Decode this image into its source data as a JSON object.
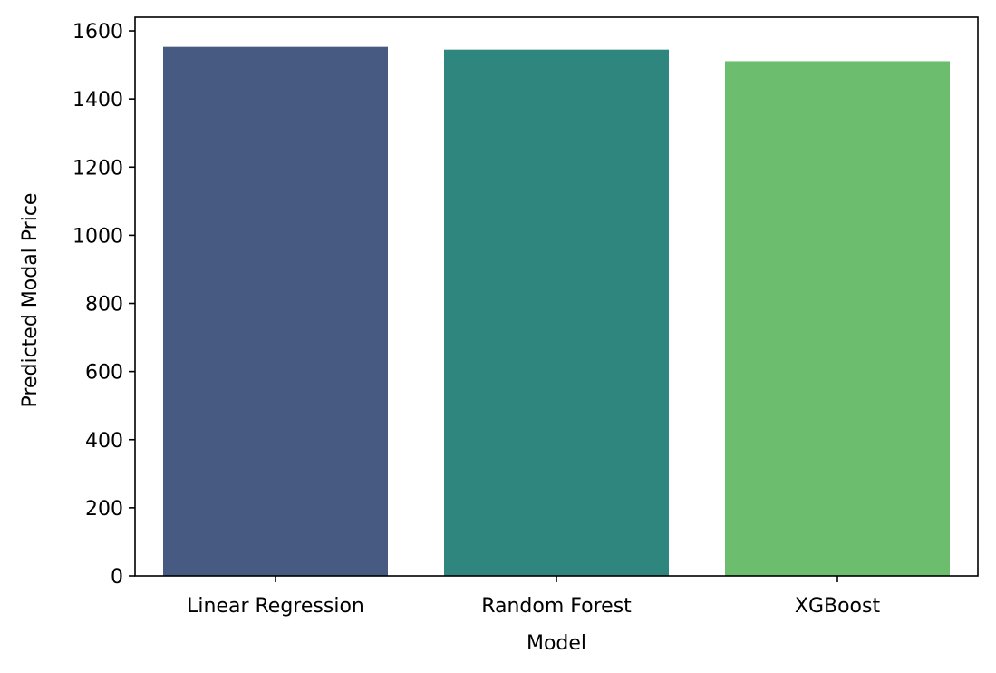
{
  "chart_data": {
    "type": "bar",
    "title": "",
    "xlabel": "Model",
    "ylabel": "Predicted Modal Price",
    "categories": [
      "Linear Regression",
      "Random Forest",
      "XGBoost"
    ],
    "values": [
      1553,
      1545,
      1511
    ],
    "colors": [
      "#465a82",
      "#2f867e",
      "#6cbd6e"
    ],
    "ylim": [
      0,
      1640
    ],
    "yticks": [
      0,
      200,
      400,
      600,
      800,
      1000,
      1200,
      1400,
      1600
    ],
    "grid": false,
    "legend": "none"
  }
}
